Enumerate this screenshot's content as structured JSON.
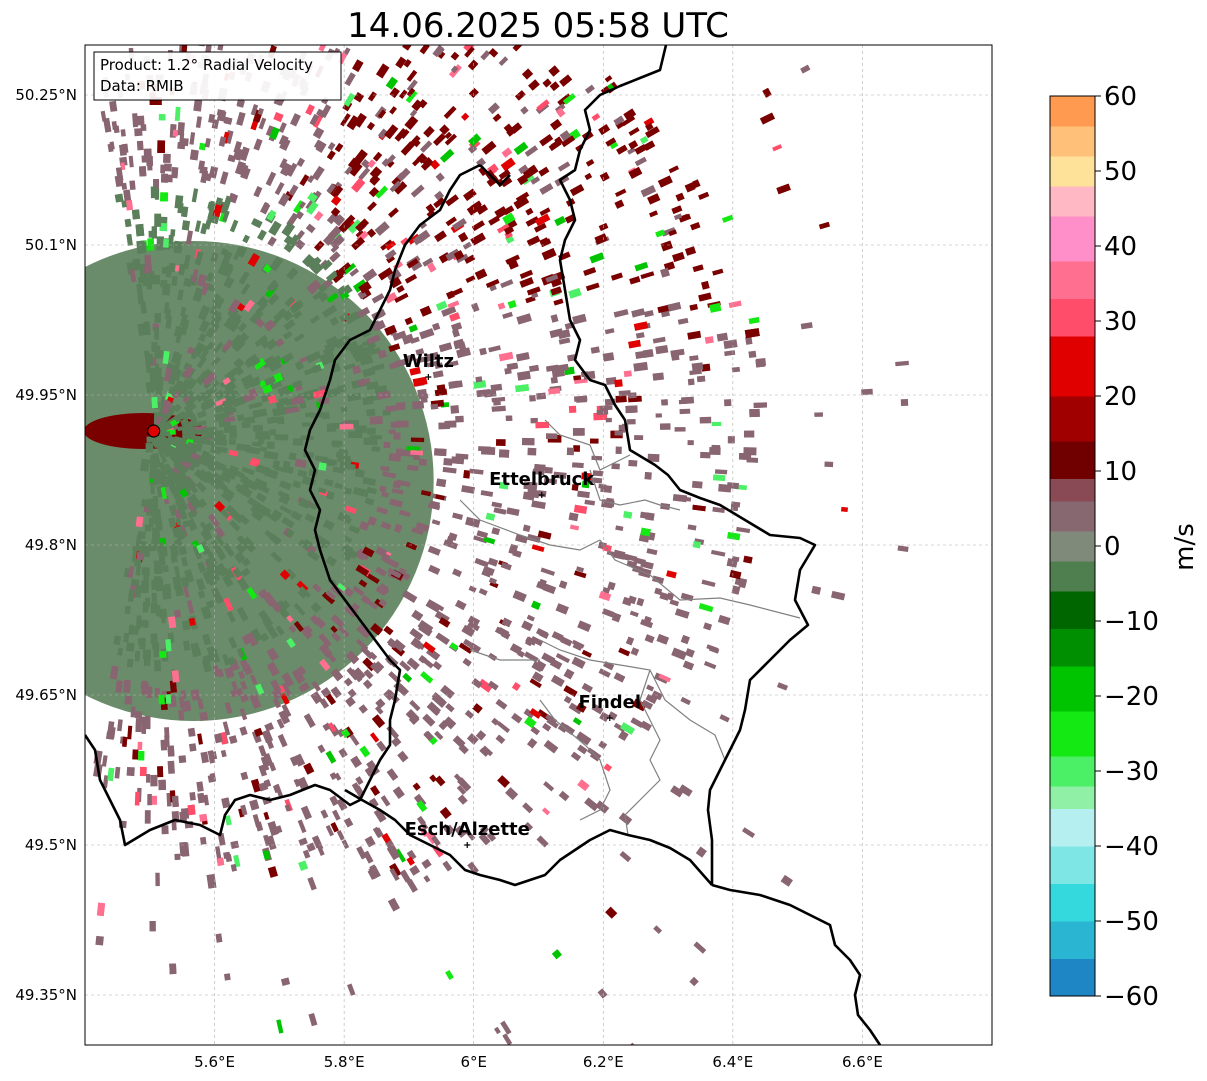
{
  "title": "14.06.2025 05:58 UTC",
  "info": {
    "product": "Product: 1.2° Radial Velocity",
    "source": "Data: RMIB"
  },
  "map_extent": {
    "lon": [
      5.4,
      6.8
    ],
    "lat": [
      49.3,
      50.3
    ]
  },
  "lon_ticks": [
    {
      "value": 5.6,
      "label": "5.6°E"
    },
    {
      "value": 5.8,
      "label": "5.8°E"
    },
    {
      "value": 6.0,
      "label": "6°E"
    },
    {
      "value": 6.2,
      "label": "6.2°E"
    },
    {
      "value": 6.4,
      "label": "6.4°E"
    },
    {
      "value": 6.6,
      "label": "6.6°E"
    }
  ],
  "lat_ticks": [
    {
      "value": 50.25,
      "label": "50.25°N"
    },
    {
      "value": 50.1,
      "label": "50.1°N"
    },
    {
      "value": 49.95,
      "label": "49.95°N"
    },
    {
      "value": 49.8,
      "label": "49.8°N"
    },
    {
      "value": 49.65,
      "label": "49.65°N"
    },
    {
      "value": 49.5,
      "label": "49.5°N"
    },
    {
      "value": 49.35,
      "label": "49.35°N"
    }
  ],
  "cities": [
    {
      "name": "Wiltz",
      "lon": 5.93,
      "lat": 49.968
    },
    {
      "name": "Ettelbruck",
      "lon": 6.105,
      "lat": 49.85
    },
    {
      "name": "Findel",
      "lon": 6.21,
      "lat": 49.627
    },
    {
      "name": "Esch/Alzette",
      "lon": 5.99,
      "lat": 49.5
    }
  ],
  "radar_site": {
    "lon": 5.506,
    "lat": 49.914
  },
  "colorbar": {
    "label": "m/s",
    "min": -60,
    "max": 60,
    "ticks": [
      {
        "value": 60,
        "label": "60"
      },
      {
        "value": 50,
        "label": "50"
      },
      {
        "value": 40,
        "label": "40"
      },
      {
        "value": 30,
        "label": "30"
      },
      {
        "value": 20,
        "label": "20"
      },
      {
        "value": 10,
        "label": "10"
      },
      {
        "value": 0,
        "label": "0"
      },
      {
        "value": -10,
        "label": "−10"
      },
      {
        "value": -20,
        "label": "−20"
      },
      {
        "value": -30,
        "label": "−30"
      },
      {
        "value": -40,
        "label": "−40"
      },
      {
        "value": -50,
        "label": "−50"
      },
      {
        "value": -60,
        "label": "−60"
      }
    ],
    "stops": [
      {
        "from": -60,
        "to": -55,
        "color": "#1f86c6"
      },
      {
        "from": -55,
        "to": -50,
        "color": "#2ab6d3"
      },
      {
        "from": -50,
        "to": -45,
        "color": "#33d9dc"
      },
      {
        "from": -45,
        "to": -40,
        "color": "#7fe6e6"
      },
      {
        "from": -40,
        "to": -35,
        "color": "#b6eff0"
      },
      {
        "from": -35,
        "to": -32,
        "color": "#8ff0a6"
      },
      {
        "from": -32,
        "to": -28,
        "color": "#4cf066"
      },
      {
        "from": -28,
        "to": -22,
        "color": "#14e914"
      },
      {
        "from": -22,
        "to": -16,
        "color": "#00c400"
      },
      {
        "from": -16,
        "to": -11,
        "color": "#008f00"
      },
      {
        "from": -11,
        "to": -6,
        "color": "#006600"
      },
      {
        "from": -6,
        "to": -2,
        "color": "#4f7f4f"
      },
      {
        "from": -2,
        "to": 2,
        "color": "#7f8a7a"
      },
      {
        "from": 2,
        "to": 6,
        "color": "#886870"
      },
      {
        "from": 6,
        "to": 9,
        "color": "#8a4a55"
      },
      {
        "from": 9,
        "to": 14,
        "color": "#700000"
      },
      {
        "from": 14,
        "to": 20,
        "color": "#a10000"
      },
      {
        "from": 20,
        "to": 28,
        "color": "#e00000"
      },
      {
        "from": 28,
        "to": 33,
        "color": "#ff4d6a"
      },
      {
        "from": 33,
        "to": 38,
        "color": "#ff6f8f"
      },
      {
        "from": 38,
        "to": 44,
        "color": "#ff8fc8"
      },
      {
        "from": 44,
        "to": 48,
        "color": "#ffb8c4"
      },
      {
        "from": 48,
        "to": 52,
        "color": "#ffe29a"
      },
      {
        "from": 52,
        "to": 56,
        "color": "#ffc07a"
      },
      {
        "from": 56,
        "to": 60,
        "color": "#ff9a50"
      }
    ]
  },
  "colors": {
    "green_zone": "#5a7f5a",
    "mauve_zone": "#886570",
    "maroon_zone": "#7a0000",
    "border": "#000000",
    "canton": "#808080",
    "radar_marker": "#e00000"
  }
}
